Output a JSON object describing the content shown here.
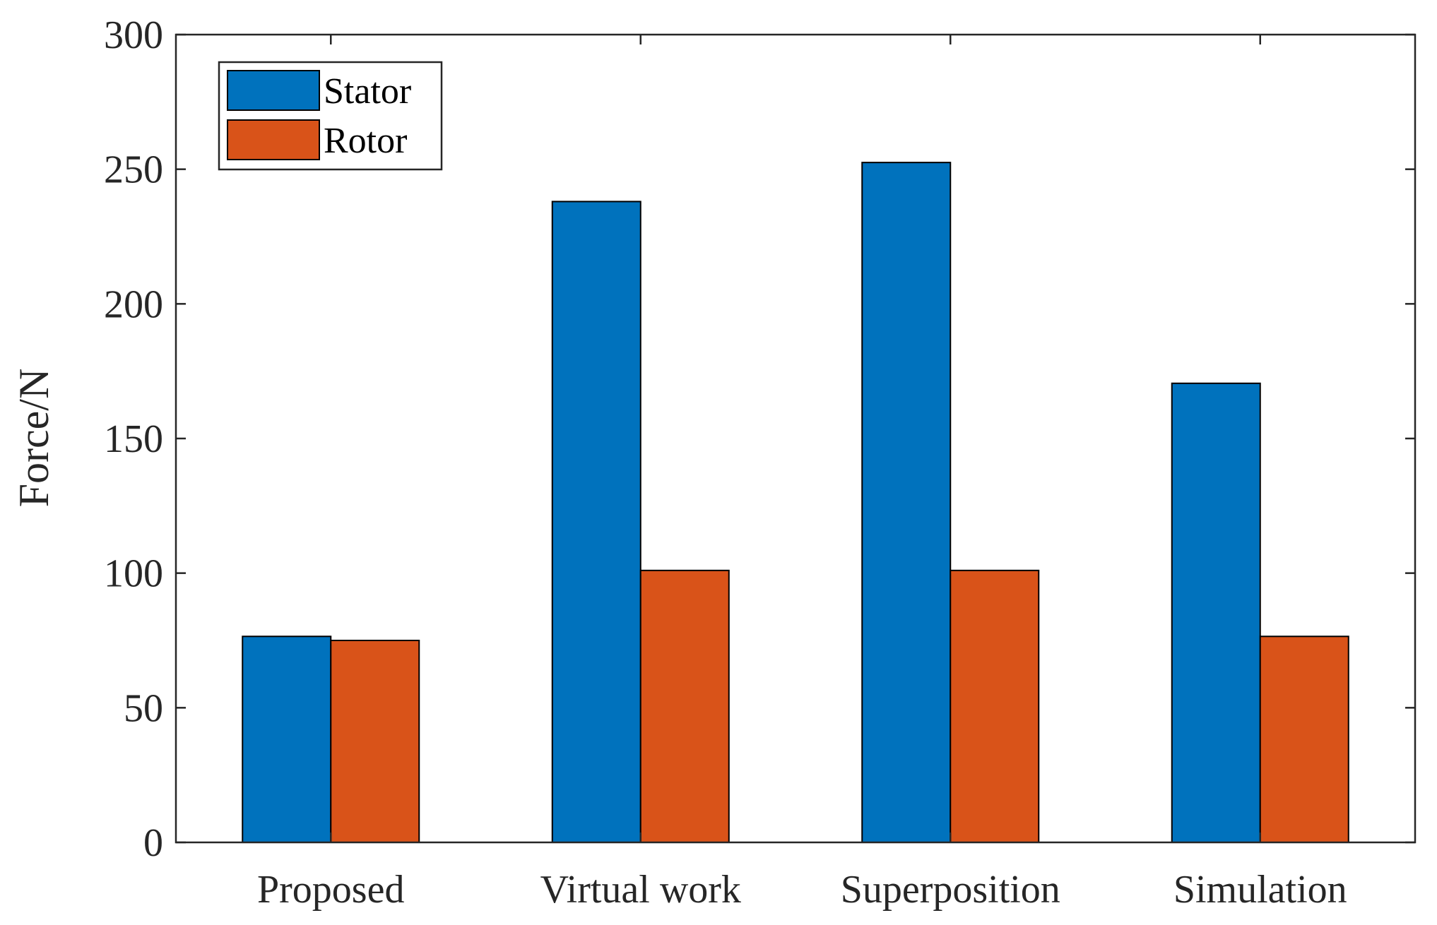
{
  "chart_data": {
    "type": "bar",
    "title": "",
    "xlabel": "",
    "ylabel": "Force/N",
    "categories": [
      "Proposed",
      "Virtual work",
      "Superposition",
      "Simulation"
    ],
    "series": [
      {
        "name": "Stator",
        "values": [
          76.5,
          238,
          252.5,
          170.5
        ],
        "color": "#0072BD"
      },
      {
        "name": "Rotor",
        "values": [
          75,
          101,
          101,
          76.5
        ],
        "color": "#D95319"
      }
    ],
    "ylim": [
      0,
      300
    ],
    "yticks": [
      "0",
      "50",
      "100",
      "150",
      "200",
      "250",
      "300"
    ],
    "grid": false,
    "legend_position": "top-left"
  }
}
